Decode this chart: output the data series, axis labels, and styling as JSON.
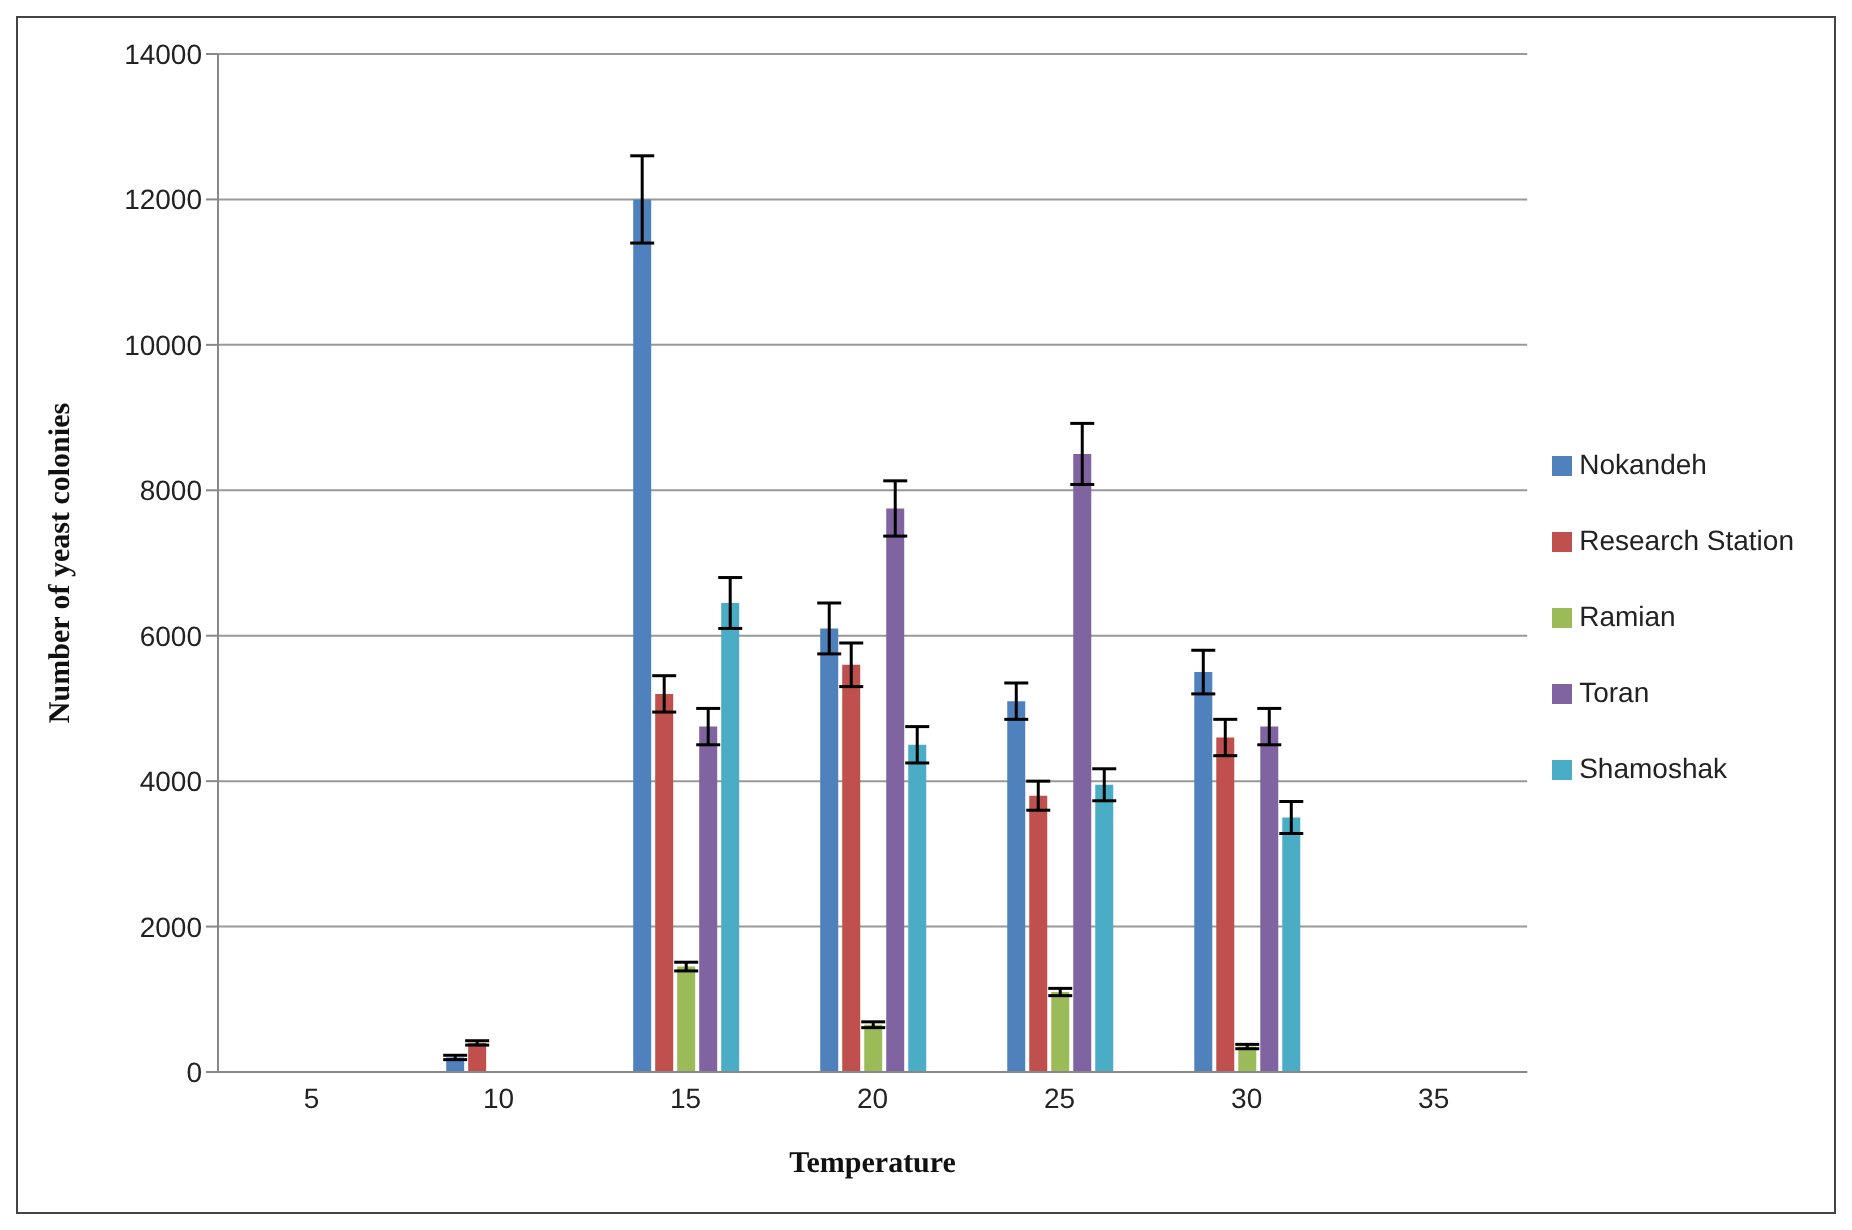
{
  "chart_data": {
    "type": "bar",
    "xlabel": "Temperature",
    "ylabel": "Number  of yeast colonies",
    "categories": [
      "5",
      "10",
      "15",
      "20",
      "25",
      "30",
      "35"
    ],
    "series": [
      {
        "name": "Nokandeh",
        "color": "#4f81bd",
        "values": [
          null,
          200,
          12000,
          6100,
          5100,
          5500,
          null
        ],
        "errors": [
          null,
          30,
          600,
          350,
          250,
          300,
          null
        ]
      },
      {
        "name": "Research Station",
        "color": "#c0504d",
        "values": [
          null,
          400,
          5200,
          5600,
          3800,
          4600,
          null
        ],
        "errors": [
          null,
          30,
          250,
          300,
          200,
          250,
          null
        ]
      },
      {
        "name": "Ramian",
        "color": "#9bbb59",
        "values": [
          null,
          null,
          1450,
          650,
          1100,
          350,
          null
        ],
        "errors": [
          null,
          null,
          60,
          40,
          50,
          30,
          null
        ]
      },
      {
        "name": "Toran",
        "color": "#8064a2",
        "values": [
          null,
          null,
          4750,
          7750,
          8500,
          4750,
          null
        ],
        "errors": [
          null,
          null,
          250,
          380,
          420,
          250,
          null
        ]
      },
      {
        "name": "Shamoshak",
        "color": "#4bacc6",
        "values": [
          null,
          null,
          6450,
          4500,
          3950,
          3500,
          null
        ],
        "errors": [
          null,
          null,
          350,
          250,
          220,
          220,
          null
        ]
      }
    ],
    "ylim": [
      0,
      14000
    ],
    "yticks": [
      0,
      2000,
      4000,
      6000,
      8000,
      10000,
      12000,
      14000
    ],
    "grid": "y",
    "legend": "right"
  }
}
